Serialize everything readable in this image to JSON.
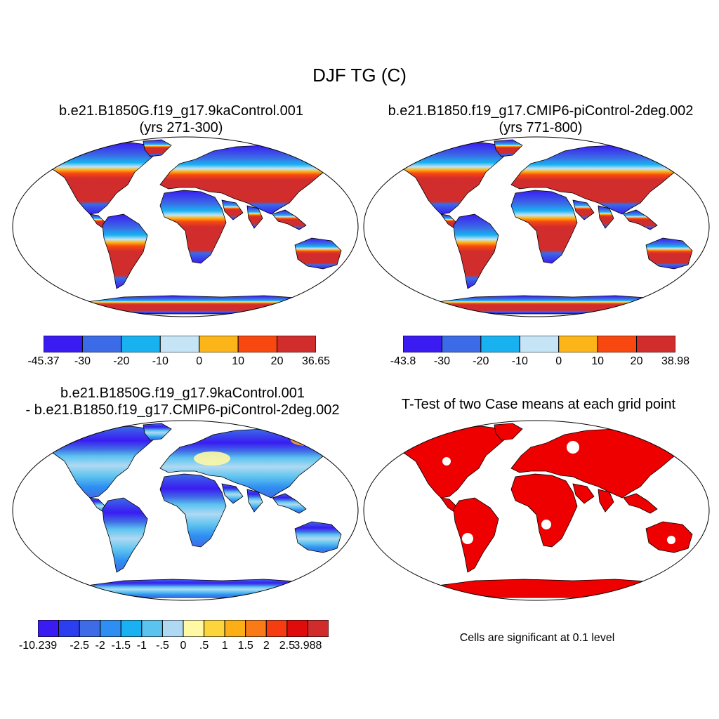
{
  "main_title": "DJF TG (C)",
  "panels": [
    {
      "title_line1": "b.e21.B1850G.f19_g17.9kaControl.001",
      "title_line2": "(yrs 271-300)"
    },
    {
      "title_line1": "b.e21.B1850.f19_g17.CMIP6-piControl-2deg.002",
      "title_line2": "(yrs 771-800)"
    },
    {
      "title_line1": "b.e21.B1850G.f19_g17.9kaControl.001",
      "title_line2": "- b.e21.B1850.f19_g17.CMIP6-piControl-2deg.002"
    },
    {
      "title_line1": "T-Test of two Case means at each grid point"
    }
  ],
  "colorbars": [
    {
      "labels": [
        "-45.37",
        "-30",
        "-20",
        "-10",
        "0",
        "10",
        "20",
        "36.65"
      ],
      "colors": [
        "#3a1cf2",
        "#3b6be6",
        "#18b2f0",
        "#c5e4f5",
        "#fcb518",
        "#f9480f",
        "#d22d2d"
      ]
    },
    {
      "labels": [
        "-43.8",
        "-30",
        "-20",
        "-10",
        "0",
        "10",
        "20",
        "38.98"
      ],
      "colors": [
        "#3a1cf2",
        "#3b6be6",
        "#18b2f0",
        "#c5e4f5",
        "#fcb518",
        "#f9480f",
        "#d22d2d"
      ]
    },
    {
      "labels": [
        "-10.239",
        "-2.5",
        "-2",
        "-1.5",
        "-1",
        "-.5",
        "0",
        ".5",
        "1",
        "1.5",
        "2",
        "2.5",
        "3.988"
      ],
      "colors": [
        "#3a1cf2",
        "#2c3ff0",
        "#3f6ce6",
        "#2e8ef2",
        "#19b1f1",
        "#5cc3ef",
        "#afd9f3",
        "#fff8a5",
        "#fcd53c",
        "#fcae16",
        "#fb7a18",
        "#f63d12",
        "#e00c0c",
        "#d02c2c"
      ]
    }
  ],
  "note": "Cells are significant at 0.1 level",
  "map_colors": {
    "ocean": "#ffffff",
    "coast": "#000000",
    "ttest_significant": "#ee0000"
  }
}
